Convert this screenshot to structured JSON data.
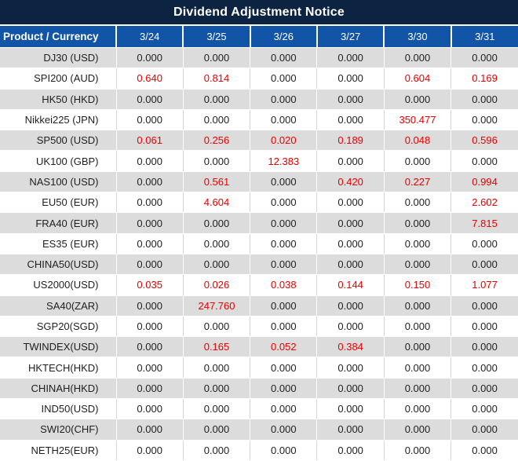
{
  "title": "Dividend Adjustment Notice",
  "colors": {
    "navy": "#0d2342",
    "blue": "#1254a6",
    "gray": "#dcdcdc",
    "red": "#e60000",
    "divider": "#d6d6d6",
    "text": "#1f1f1f"
  },
  "chart_data": {
    "type": "table",
    "title": "Dividend Adjustment Notice",
    "columns": [
      "Product / Currency",
      "3/24",
      "3/25",
      "3/26",
      "3/27",
      "3/30",
      "3/31"
    ],
    "value_color_rule": "non-zero dividend adjustments shown in red, zeros in black",
    "rows": [
      {
        "label": "DJ30 (USD)",
        "values": [
          "0.000",
          "0.000",
          "0.000",
          "0.000",
          "0.000",
          "0.000"
        ]
      },
      {
        "label": "SPI200 (AUD)",
        "values": [
          "0.640",
          "0.814",
          "0.000",
          "0.000",
          "0.604",
          "0.169"
        ]
      },
      {
        "label": "HK50 (HKD)",
        "values": [
          "0.000",
          "0.000",
          "0.000",
          "0.000",
          "0.000",
          "0.000"
        ]
      },
      {
        "label": "Nikkei225 (JPN)",
        "values": [
          "0.000",
          "0.000",
          "0.000",
          "0.000",
          "350.477",
          "0.000"
        ]
      },
      {
        "label": "SP500 (USD)",
        "values": [
          "0.061",
          "0.256",
          "0.020",
          "0.189",
          "0.048",
          "0.596"
        ]
      },
      {
        "label": "UK100 (GBP)",
        "values": [
          "0.000",
          "0.000",
          "12.383",
          "0.000",
          "0.000",
          "0.000"
        ]
      },
      {
        "label": "NAS100 (USD)",
        "values": [
          "0.000",
          "0.561",
          "0.000",
          "0.420",
          "0.227",
          "0.994"
        ]
      },
      {
        "label": "EU50 (EUR)",
        "values": [
          "0.000",
          "4.604",
          "0.000",
          "0.000",
          "0.000",
          "2.602"
        ]
      },
      {
        "label": "FRA40 (EUR)",
        "values": [
          "0.000",
          "0.000",
          "0.000",
          "0.000",
          "0.000",
          "7.815"
        ]
      },
      {
        "label": "ES35 (EUR)",
        "values": [
          "0.000",
          "0.000",
          "0.000",
          "0.000",
          "0.000",
          "0.000"
        ]
      },
      {
        "label": "CHINA50(USD)",
        "values": [
          "0.000",
          "0.000",
          "0.000",
          "0.000",
          "0.000",
          "0.000"
        ]
      },
      {
        "label": "US2000(USD)",
        "values": [
          "0.035",
          "0.026",
          "0.038",
          "0.144",
          "0.150",
          "1.077"
        ]
      },
      {
        "label": "SA40(ZAR)",
        "values": [
          "0.000",
          "247.760",
          "0.000",
          "0.000",
          "0.000",
          "0.000"
        ]
      },
      {
        "label": "SGP20(SGD)",
        "values": [
          "0.000",
          "0.000",
          "0.000",
          "0.000",
          "0.000",
          "0.000"
        ]
      },
      {
        "label": "TWINDEX(USD)",
        "values": [
          "0.000",
          "0.165",
          "0.052",
          "0.384",
          "0.000",
          "0.000"
        ]
      },
      {
        "label": "HKTECH(HKD)",
        "values": [
          "0.000",
          "0.000",
          "0.000",
          "0.000",
          "0.000",
          "0.000"
        ]
      },
      {
        "label": "CHINAH(HKD)",
        "values": [
          "0.000",
          "0.000",
          "0.000",
          "0.000",
          "0.000",
          "0.000"
        ]
      },
      {
        "label": "IND50(USD)",
        "values": [
          "0.000",
          "0.000",
          "0.000",
          "0.000",
          "0.000",
          "0.000"
        ]
      },
      {
        "label": "SWI20(CHF)",
        "values": [
          "0.000",
          "0.000",
          "0.000",
          "0.000",
          "0.000",
          "0.000"
        ]
      },
      {
        "label": "NETH25(EUR)",
        "values": [
          "0.000",
          "0.000",
          "0.000",
          "0.000",
          "0.000",
          "0.000"
        ]
      }
    ]
  }
}
